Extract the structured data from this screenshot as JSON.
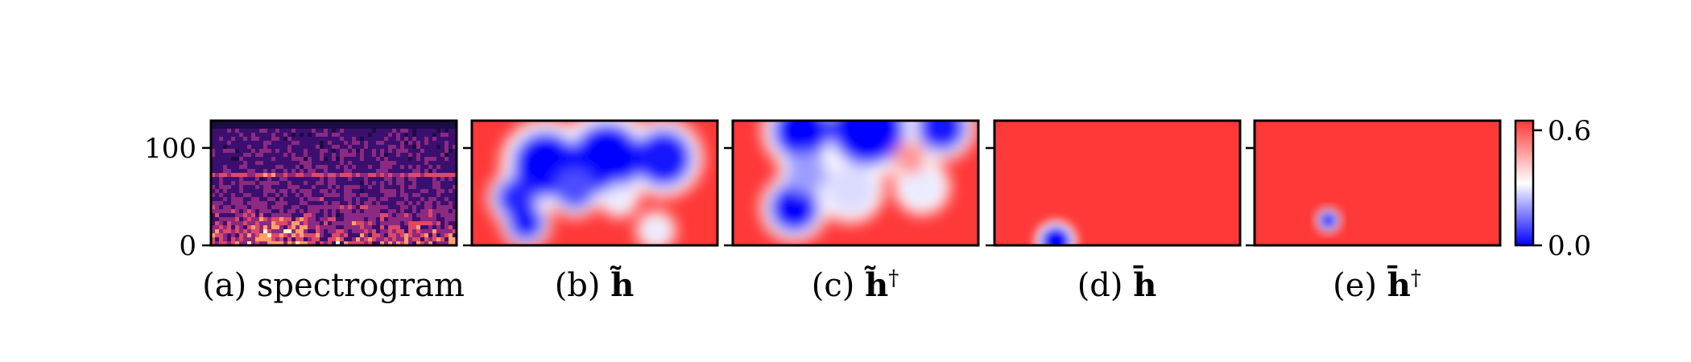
{
  "chart_data": [
    {
      "type": "heatmap",
      "title": "",
      "caption_prefix": "(a) ",
      "caption_main": "spectrogram",
      "caption_sup": "",
      "ylabel": "",
      "ylim": [
        0,
        128
      ],
      "yticks": [
        0,
        100
      ],
      "colormap": "magma",
      "colors": [
        "#1c0c45",
        "#3b0f6f",
        "#8c2981",
        "#de4968",
        "#fe9f6d",
        "#fcfdbf"
      ]
    },
    {
      "type": "heatmap",
      "title": "",
      "caption_prefix": "(b) ",
      "caption_main": "h̃",
      "caption_sup": "",
      "colormap": "bwr",
      "blobs": [
        {
          "cx": 0.3,
          "cy": 0.35,
          "r": 0.16,
          "v": 0.0
        },
        {
          "cx": 0.55,
          "cy": 0.3,
          "r": 0.17,
          "v": 0.0
        },
        {
          "cx": 0.78,
          "cy": 0.3,
          "r": 0.14,
          "v": 0.03
        },
        {
          "cx": 0.18,
          "cy": 0.62,
          "r": 0.1,
          "v": 0.05
        },
        {
          "cx": 0.22,
          "cy": 0.82,
          "r": 0.09,
          "v": 0.03
        },
        {
          "cx": 0.42,
          "cy": 0.55,
          "r": 0.1,
          "v": 0.1
        },
        {
          "cx": 0.6,
          "cy": 0.62,
          "r": 0.07,
          "v": 0.3
        },
        {
          "cx": 0.75,
          "cy": 0.88,
          "r": 0.07,
          "v": 0.3
        }
      ]
    },
    {
      "type": "heatmap",
      "title": "",
      "caption_prefix": "(c) ",
      "caption_main": "h̃",
      "caption_sup": "†",
      "colormap": "bwr",
      "blobs": [
        {
          "cx": 0.28,
          "cy": 0.08,
          "r": 0.14,
          "v": 0.0
        },
        {
          "cx": 0.55,
          "cy": 0.06,
          "r": 0.18,
          "v": 0.0
        },
        {
          "cx": 0.85,
          "cy": 0.05,
          "r": 0.12,
          "v": 0.03
        },
        {
          "cx": 0.25,
          "cy": 0.7,
          "r": 0.12,
          "v": 0.0
        },
        {
          "cx": 0.3,
          "cy": 0.42,
          "r": 0.1,
          "v": 0.2
        },
        {
          "cx": 0.48,
          "cy": 0.55,
          "r": 0.12,
          "v": 0.28
        },
        {
          "cx": 0.77,
          "cy": 0.53,
          "r": 0.1,
          "v": 0.3
        },
        {
          "cx": 0.72,
          "cy": 0.3,
          "r": 0.08,
          "v": 0.5
        }
      ]
    },
    {
      "type": "heatmap",
      "title": "",
      "caption_prefix": "(d) ",
      "caption_main": "h̄",
      "caption_sup": "",
      "colormap": "bwr",
      "blobs": [
        {
          "cx": 0.25,
          "cy": 0.97,
          "r": 0.075,
          "v": 0.0
        }
      ]
    },
    {
      "type": "heatmap",
      "title": "",
      "caption_prefix": "(e) ",
      "caption_main": "h̄",
      "caption_sup": "†",
      "colormap": "bwr",
      "blobs": [
        {
          "cx": 0.3,
          "cy": 0.8,
          "r": 0.045,
          "v": 0.0
        }
      ]
    },
    {
      "type": "colorbar",
      "colormap": "bwr",
      "range": [
        0.0,
        0.65
      ],
      "ticks": [
        0.0,
        0.6
      ],
      "tick_labels": [
        "0.0",
        "0.6"
      ],
      "colors": {
        "low": "#0000ff",
        "mid": "#ffffff",
        "high": "#ff3838"
      }
    }
  ]
}
